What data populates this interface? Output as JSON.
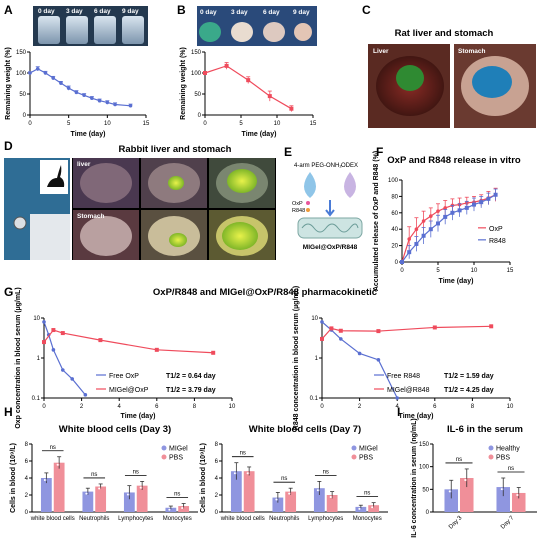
{
  "panels": {
    "A": {
      "label": "A",
      "day_labels": [
        "0 day",
        "3 day",
        "6 day",
        "9 day"
      ]
    },
    "B": {
      "label": "B",
      "day_labels": [
        "0 day",
        "3 day",
        "6 day",
        "9 day"
      ]
    },
    "C": {
      "label": "C",
      "title": "Rat liver and stomach",
      "photo_labels": [
        "Liver",
        "Stomach"
      ]
    },
    "D": {
      "label": "D",
      "title": "Rabbit liver and stomach",
      "photo_labels": [
        "liver",
        "Stomach"
      ]
    },
    "E": {
      "label": "E",
      "reagents": [
        "4-arm PEG-ONH₂",
        "ODEX"
      ],
      "drugs": [
        "OxP",
        "R848"
      ],
      "product": "MIGel@OxP/R848"
    },
    "F": {
      "label": "F"
    },
    "G": {
      "label": "G",
      "title": "OxP/R848 and MIGel@OxP/R848 pharmacokinetic"
    },
    "H": {
      "label": "H"
    },
    "I": {
      "label": "I"
    }
  },
  "colors": {
    "blue": "#5a6fd1",
    "red": "#ef4b5c",
    "pink": "#f08f99",
    "periwinkle": "#8f96e0",
    "gel_blue": "#2aa1e0"
  },
  "chart_data": [
    {
      "id": "A",
      "type": "line",
      "xlabel": "Time (day)",
      "ylabel": "Remaining weight (%)",
      "xlim": [
        0,
        15
      ],
      "ylim": [
        0,
        150
      ],
      "xticks": [
        0,
        5,
        10,
        15
      ],
      "yticks": [
        0,
        50,
        100,
        150
      ],
      "series": [
        {
          "color": "#5a6fd1",
          "x": [
            0,
            1,
            2,
            3,
            4,
            5,
            6,
            7,
            8,
            9,
            10,
            11,
            13
          ],
          "y": [
            100,
            110,
            100,
            88,
            76,
            64,
            54,
            47,
            40,
            34,
            30,
            25,
            22
          ],
          "err": [
            3,
            5,
            4,
            4,
            4,
            5,
            4,
            4,
            4,
            4,
            4,
            4,
            4
          ]
        }
      ]
    },
    {
      "id": "B",
      "type": "line",
      "xlabel": "Time (day)",
      "ylabel": "Remaining weight (%)",
      "xlim": [
        0,
        15
      ],
      "ylim": [
        0,
        150
      ],
      "xticks": [
        0,
        5,
        10,
        15
      ],
      "yticks": [
        0,
        50,
        100,
        150
      ],
      "series": [
        {
          "color": "#ef4b5c",
          "x": [
            0,
            3,
            6,
            9,
            12
          ],
          "y": [
            100,
            117,
            83,
            45,
            15
          ],
          "err": [
            0,
            8,
            8,
            12,
            7
          ]
        }
      ]
    },
    {
      "id": "F",
      "type": "line",
      "title": "OxP and R848 release in vitro",
      "xlabel": "Time (day)",
      "ylabel": "Accumulated release of OxP and R848 (%)",
      "xlim": [
        0,
        15
      ],
      "ylim": [
        0,
        100
      ],
      "xticks": [
        0,
        5,
        10,
        15
      ],
      "yticks": [
        0,
        20,
        40,
        60,
        80,
        100
      ],
      "legend": "right",
      "series": [
        {
          "name": "OxP",
          "color": "#ef4b5c",
          "x": [
            0,
            1,
            2,
            3,
            4,
            5,
            6,
            7,
            8,
            9,
            10,
            11,
            12,
            13
          ],
          "y": [
            0,
            28,
            40,
            50,
            56,
            62,
            66,
            69,
            70,
            72,
            73,
            75,
            78,
            82
          ],
          "err": [
            0,
            15,
            14,
            12,
            10,
            9,
            9,
            8,
            8,
            7,
            7,
            7,
            8,
            8
          ]
        },
        {
          "name": "R848",
          "color": "#5a6fd1",
          "x": [
            0,
            1,
            2,
            3,
            4,
            5,
            6,
            7,
            8,
            9,
            10,
            11,
            12,
            13
          ],
          "y": [
            0,
            12,
            22,
            32,
            40,
            47,
            55,
            60,
            63,
            66,
            70,
            73,
            77,
            82
          ],
          "err": [
            0,
            8,
            9,
            10,
            10,
            10,
            9,
            9,
            8,
            8,
            8,
            7,
            7,
            7
          ]
        }
      ]
    },
    {
      "id": "G1",
      "type": "line",
      "xlabel": "Time (day)",
      "ylabel": "Oxp concentration in blood serum (µg/mL)",
      "yscale": "log",
      "xlim": [
        0,
        10
      ],
      "ylim": [
        0.1,
        10
      ],
      "xticks": [
        0,
        2,
        4,
        6,
        8,
        10
      ],
      "yticks": [
        0.1,
        1,
        10
      ],
      "ytick_labels": [
        "0.1",
        "1",
        "10"
      ],
      "legend": "bottom-right",
      "series": [
        {
          "name": "Free OxP",
          "color": "#5a6fd1",
          "half_life": "T1/2 = 0.64 day",
          "x": [
            0,
            0.25,
            0.5,
            1,
            1.5,
            2.2
          ],
          "y": [
            8,
            3.8,
            1.6,
            0.5,
            0.3,
            0.12
          ]
        },
        {
          "name": "MIGel@OxP",
          "color": "#ef4b5c",
          "half_life": "T1/2 = 3.79 day",
          "x": [
            0,
            0.5,
            1,
            3,
            6,
            9
          ],
          "y": [
            2.5,
            5,
            4.2,
            2.8,
            1.6,
            1.35
          ]
        }
      ]
    },
    {
      "id": "G2",
      "type": "line",
      "xlabel": "Time (day)",
      "ylabel": "R848 concentration in blood serum (µg/mL)",
      "yscale": "log",
      "xlim": [
        0,
        10
      ],
      "ylim": [
        0.1,
        10
      ],
      "xticks": [
        0,
        2,
        4,
        6,
        8,
        10
      ],
      "yticks": [
        0.1,
        1,
        10
      ],
      "ytick_labels": [
        "0.1",
        "1",
        "10"
      ],
      "legend": "bottom-right",
      "series": [
        {
          "name": "Free R848",
          "color": "#5a6fd1",
          "half_life": "T1/2 = 1.59 day",
          "x": [
            0,
            0.5,
            1,
            2,
            3,
            4
          ],
          "y": [
            8,
            5,
            3,
            1.3,
            0.9,
            0.1
          ]
        },
        {
          "name": "MIGel@R848",
          "color": "#ef4b5c",
          "half_life": "T1/2 = 4.25 day",
          "x": [
            0,
            0.5,
            1,
            3,
            6,
            9
          ],
          "y": [
            3,
            5.5,
            4.8,
            4.7,
            5.8,
            6.2
          ]
        }
      ]
    },
    {
      "id": "H1",
      "type": "bar",
      "title": "White blood cells  (Day 3)",
      "ylabel": "Cells in blood (10⁹/L)",
      "ylim": [
        0,
        8
      ],
      "yticks": [
        0,
        2,
        4,
        6,
        8
      ],
      "categories": [
        "white blood cells",
        "Neutrophils",
        "Lymphocytes",
        "Monocytes"
      ],
      "significance": [
        "ns",
        "ns",
        "ns",
        "ns"
      ],
      "series": [
        {
          "name": "MIGel",
          "color": "#8f96e0",
          "values": [
            4.0,
            2.4,
            2.3,
            0.5
          ],
          "err": [
            0.6,
            0.4,
            0.8,
            0.2
          ]
        },
        {
          "name": "PBS",
          "color": "#f08f99",
          "values": [
            5.8,
            3.0,
            3.1,
            0.7
          ],
          "err": [
            0.7,
            0.3,
            0.5,
            0.3
          ]
        }
      ]
    },
    {
      "id": "H2",
      "type": "bar",
      "title": "White blood cells  (Day 7)",
      "ylabel": "Cells in blood (10⁹/L)",
      "ylim": [
        0,
        8
      ],
      "yticks": [
        0,
        2,
        4,
        6,
        8
      ],
      "categories": [
        "white blood cells",
        "Neutrophils",
        "Lymphocytes",
        "Monocytes"
      ],
      "significance": [
        "ns",
        "ns",
        "ns",
        "ns"
      ],
      "series": [
        {
          "name": "MIGel",
          "color": "#8f96e0",
          "values": [
            4.8,
            1.7,
            2.8,
            0.6
          ],
          "err": [
            1.0,
            0.6,
            0.8,
            0.2
          ]
        },
        {
          "name": "PBS",
          "color": "#f08f99",
          "values": [
            4.8,
            2.4,
            2.0,
            0.8
          ],
          "err": [
            0.5,
            0.4,
            0.4,
            0.3
          ]
        }
      ]
    },
    {
      "id": "I",
      "type": "bar",
      "title": "IL-6 in the serum",
      "ylabel": "IL-6 concentration in serum (ng/mL)",
      "ylim": [
        0,
        150
      ],
      "yticks": [
        0,
        50,
        100,
        150
      ],
      "categories": [
        "Day 3",
        "Day 7"
      ],
      "significance": [
        "ns",
        "ns"
      ],
      "series": [
        {
          "name": "Healthy",
          "color": "#8f96e0",
          "values": [
            50,
            55
          ],
          "err": [
            20,
            20
          ]
        },
        {
          "name": "PBS",
          "color": "#f08f99",
          "values": [
            75,
            42
          ],
          "err": [
            20,
            12
          ]
        }
      ]
    }
  ]
}
